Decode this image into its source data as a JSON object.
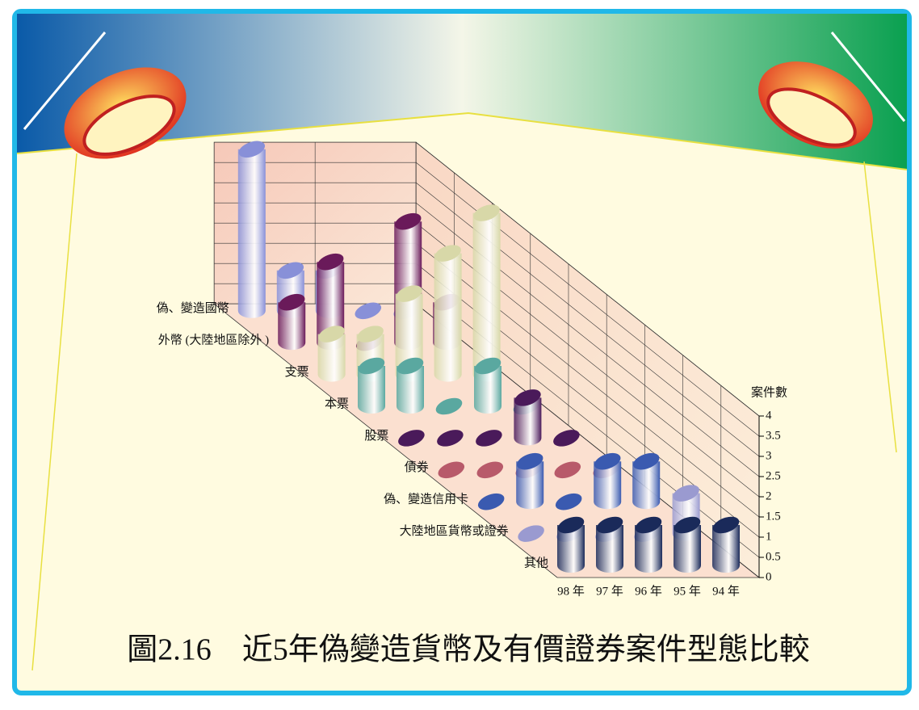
{
  "chart_data": {
    "type": "bar3d",
    "title": "圖2.16　近5年偽變造貨幣及有價證券案件型態比較",
    "y_label": "案件數",
    "categories": [
      "98 年",
      "97 年",
      "96 年",
      "95 年",
      "94 年"
    ],
    "series": [
      {
        "name": "偽、變造國幣",
        "color": "#8890d8",
        "values": [
          4,
          1,
          1,
          0,
          0
        ]
      },
      {
        "name": "外幣 (大陸地區除外 )",
        "color": "#6a1a5a",
        "values": [
          1,
          2,
          0,
          3,
          1
        ]
      },
      {
        "name": "支票",
        "color": "#d8d8a8",
        "values": [
          1,
          1,
          2,
          3,
          4
        ]
      },
      {
        "name": "本票",
        "color": "#5aa8a0",
        "values": [
          1,
          1,
          0,
          1,
          0
        ]
      },
      {
        "name": "股票",
        "color": "#4a1a5a",
        "values": [
          0,
          0,
          0,
          1,
          0
        ]
      },
      {
        "name": "債券",
        "color": "#b85a6a",
        "values": [
          0,
          0,
          0,
          0,
          0
        ]
      },
      {
        "name": "偽、變造信用卡",
        "color": "#3a5ab0",
        "values": [
          0,
          1,
          0,
          1,
          1
        ]
      },
      {
        "name": "大陸地區貨幣或證券",
        "color": "#9a9ad0",
        "values": [
          0,
          0,
          0,
          0,
          1
        ]
      },
      {
        "name": "其他",
        "color": "#1a2a5a",
        "values": [
          1,
          1,
          1,
          1,
          1
        ]
      }
    ],
    "ylim": [
      0,
      4
    ],
    "yticks": [
      0,
      0.5,
      1,
      1.5,
      2,
      2.5,
      3,
      3.5,
      4
    ],
    "grid": true
  }
}
